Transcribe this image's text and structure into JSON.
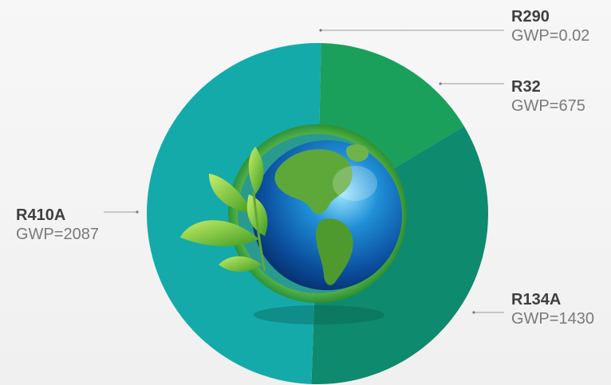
{
  "chart_data": {
    "type": "pie",
    "title": "",
    "categories": [
      "R290",
      "R32",
      "R134A",
      "R410A"
    ],
    "values": [
      0.02,
      675,
      1430,
      2087
    ],
    "value_labels": [
      "GWP=0.02",
      "GWP=675",
      "GWP=1430",
      "GWP=2087"
    ],
    "colors": [
      "#f2e24a",
      "#1aa05a",
      "#0e8a6e",
      "#14aaaa"
    ],
    "center_image": "earth-globe-with-leaves"
  }
}
